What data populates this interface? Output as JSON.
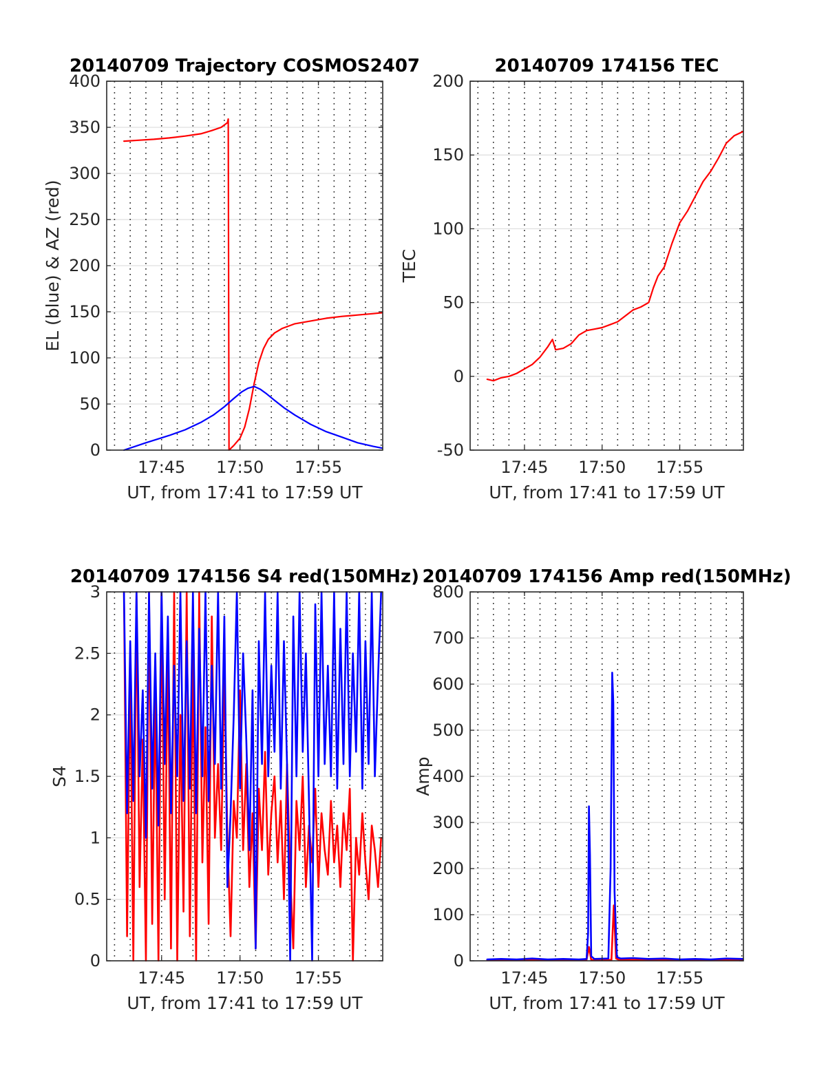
{
  "chart_data": [
    {
      "type": "line",
      "title": "20140709 Trajectory COSMOS2407",
      "xlabel": "UT, from 17:41 to 17:59 UT",
      "ylabel": "EL (blue) & AZ (red)",
      "xlim": [
        41.5,
        59.1
      ],
      "ylim": [
        0,
        400
      ],
      "xticks": [
        45,
        50,
        55
      ],
      "xtick_labels": [
        "17:45",
        "17:50",
        "17:55"
      ],
      "yticks": [
        0,
        50,
        100,
        150,
        200,
        250,
        300,
        350,
        400
      ],
      "grid": true,
      "series": [
        {
          "color": "#ff0000",
          "x": [
            42.6,
            43.5,
            44.5,
            45.5,
            46.5,
            47.5,
            48.2,
            48.8,
            49.2,
            49.25,
            49.3,
            49.6,
            50.0,
            50.3,
            50.6,
            50.9,
            51.2,
            51.5,
            51.8,
            52.2,
            52.7,
            53.5,
            54.5,
            55.5,
            56.5,
            57.5,
            58.5,
            59.1
          ],
          "y": [
            335,
            336,
            337,
            338.5,
            340.5,
            343,
            346.5,
            350,
            355,
            359,
            0,
            5,
            13,
            25,
            45,
            72,
            95,
            110,
            120,
            127,
            132,
            137,
            140,
            143,
            145,
            146.5,
            148,
            149
          ]
        },
        {
          "color": "#0000ff",
          "x": [
            42.6,
            44.0,
            45.5,
            46.5,
            47.5,
            48.3,
            49.0,
            49.6,
            50.1,
            50.5,
            50.9,
            51.3,
            51.7,
            52.2,
            52.8,
            53.5,
            54.5,
            55.5,
            56.5,
            57.5,
            58.5,
            59.1
          ],
          "y": [
            0,
            8,
            16,
            22,
            30,
            38,
            47,
            56,
            63,
            67,
            69,
            66,
            61,
            54,
            46,
            38,
            28,
            20,
            14,
            8,
            4,
            2
          ]
        }
      ]
    },
    {
      "type": "line",
      "title": "20140709 174156 TEC",
      "xlabel": "UT, from 17:41 to 17:59 UT",
      "ylabel": "TEC",
      "xlim": [
        41.5,
        59.1
      ],
      "ylim": [
        -50,
        200
      ],
      "xticks": [
        45,
        50,
        55
      ],
      "xtick_labels": [
        "17:45",
        "17:50",
        "17:55"
      ],
      "yticks": [
        -50,
        0,
        50,
        100,
        150,
        200
      ],
      "grid": true,
      "series": [
        {
          "color": "#ff0000",
          "x": [
            42.6,
            43.0,
            43.5,
            44.0,
            44.5,
            45.0,
            45.5,
            46.0,
            46.5,
            46.8,
            47.0,
            47.5,
            48.0,
            48.5,
            49.0,
            49.5,
            50.0,
            50.5,
            51.0,
            51.5,
            52.0,
            52.5,
            53.0,
            53.3,
            53.6,
            54.0,
            54.5,
            55.0,
            55.5,
            56.0,
            56.5,
            57.0,
            57.5,
            58.0,
            58.5,
            59.1
          ],
          "y": [
            -2,
            -3,
            -1,
            0,
            2,
            5,
            8,
            13,
            20,
            25,
            18,
            19,
            22,
            28,
            31,
            32,
            33,
            35,
            37,
            41,
            45,
            47,
            50,
            60,
            68,
            74,
            90,
            104,
            112,
            122,
            132,
            139,
            148,
            158,
            163,
            166
          ]
        }
      ]
    },
    {
      "type": "line",
      "title": "20140709 174156 S4 red(150MHz)",
      "xlabel": "UT, from 17:41 to 17:59 UT",
      "ylabel": "S4",
      "xlim": [
        41.5,
        59.1
      ],
      "ylim": [
        0,
        3
      ],
      "xticks": [
        45,
        50,
        55
      ],
      "xtick_labels": [
        "17:45",
        "17:50",
        "17:55"
      ],
      "yticks": [
        0,
        0.5,
        1,
        1.5,
        2,
        2.5,
        3
      ],
      "grid": true,
      "series": [
        {
          "color": "#ff0000",
          "x": [
            42.6,
            42.8,
            43.0,
            43.2,
            43.4,
            43.6,
            43.8,
            44.0,
            44.2,
            44.4,
            44.6,
            44.8,
            45.0,
            45.2,
            45.4,
            45.6,
            45.8,
            46.0,
            46.2,
            46.4,
            46.6,
            46.8,
            47.0,
            47.2,
            47.4,
            47.6,
            47.8,
            48.0,
            48.2,
            48.4,
            48.6,
            48.8,
            49.0,
            49.2,
            49.4,
            49.6,
            49.8,
            50.0,
            50.2,
            50.4,
            50.6,
            50.8,
            51.0,
            51.2,
            51.4,
            51.6,
            51.8,
            52.0,
            52.2,
            52.4,
            52.6,
            52.8,
            53.0,
            53.2,
            53.4,
            53.6,
            53.8,
            54.0,
            54.2,
            54.4,
            54.6,
            54.8,
            55.0,
            55.2,
            55.4,
            55.6,
            55.8,
            56.0,
            56.2,
            56.4,
            56.6,
            56.8,
            57.0,
            57.2,
            57.4,
            57.6,
            57.8,
            58.0,
            58.2,
            58.4,
            58.6,
            58.8,
            59.0
          ],
          "y": [
            3.0,
            0.2,
            2.4,
            0.0,
            3.0,
            0.6,
            1.8,
            0.0,
            3.0,
            0.3,
            2.2,
            0.0,
            3.0,
            0.5,
            2.6,
            0.1,
            3.0,
            0.0,
            2.0,
            0.4,
            3.0,
            0.2,
            2.5,
            0.0,
            3.0,
            0.8,
            1.9,
            0.3,
            2.8,
            1.0,
            1.6,
            0.9,
            2.4,
            1.0,
            0.2,
            1.3,
            1.0,
            2.2,
            0.9,
            1.6,
            0.6,
            1.2,
            0.1,
            1.4,
            0.9,
            1.7,
            0.7,
            1.2,
            1.5,
            0.8,
            1.3,
            0.5,
            1.6,
            0.7,
            0.1,
            1.3,
            0.9,
            1.5,
            0.6,
            1.1,
            0.8,
            1.4,
            0.6,
            1.2,
            0.9,
            0.7,
            1.3,
            0.8,
            1.1,
            0.6,
            1.2,
            0.9,
            1.4,
            0.0,
            1.0,
            0.7,
            1.2,
            0.8,
            0.5,
            1.1,
            0.9,
            0.6,
            1.0
          ]
        },
        {
          "color": "#0000ff",
          "x": [
            42.6,
            42.8,
            43.0,
            43.2,
            43.4,
            43.6,
            43.8,
            44.0,
            44.2,
            44.4,
            44.6,
            44.8,
            45.0,
            45.2,
            45.4,
            45.6,
            45.8,
            46.0,
            46.2,
            46.4,
            46.6,
            46.8,
            47.0,
            47.2,
            47.4,
            47.6,
            47.8,
            48.0,
            48.2,
            48.4,
            48.6,
            48.8,
            49.0,
            49.2,
            49.4,
            49.6,
            49.8,
            50.0,
            50.2,
            50.4,
            50.6,
            50.8,
            51.0,
            51.2,
            51.4,
            51.6,
            51.8,
            52.0,
            52.2,
            52.4,
            52.6,
            52.8,
            53.0,
            53.2,
            53.4,
            53.6,
            53.8,
            54.0,
            54.2,
            54.4,
            54.6,
            54.8,
            55.0,
            55.2,
            55.4,
            55.6,
            55.8,
            56.0,
            56.2,
            56.4,
            56.6,
            56.8,
            57.0,
            57.2,
            57.4,
            57.6,
            57.8,
            58.0,
            58.2,
            58.4,
            58.6,
            58.8,
            59.0
          ],
          "y": [
            3.0,
            1.2,
            2.6,
            1.3,
            3.0,
            1.5,
            2.2,
            1.0,
            3.0,
            1.4,
            2.5,
            1.1,
            3.0,
            1.6,
            2.8,
            1.2,
            2.4,
            1.5,
            3.0,
            1.3,
            2.6,
            1.4,
            3.0,
            1.2,
            2.7,
            1.5,
            3.0,
            1.3,
            2.4,
            1.6,
            3.0,
            1.4,
            2.8,
            0.6,
            1.2,
            2.0,
            3.0,
            1.4,
            2.5,
            1.8,
            0.9,
            2.2,
            0.1,
            2.6,
            1.6,
            3.0,
            1.5,
            2.4,
            1.7,
            3.0,
            1.4,
            2.6,
            1.6,
            0.0,
            2.8,
            1.5,
            3.0,
            1.7,
            2.5,
            1.3,
            0.0,
            2.9,
            1.5,
            3.0,
            1.6,
            2.4,
            1.5,
            3.0,
            1.4,
            2.7,
            1.6,
            3.0,
            1.5,
            2.5,
            1.7,
            3.0,
            1.4,
            2.6,
            1.6,
            3.0,
            1.5,
            2.3,
            3.0
          ]
        }
      ]
    },
    {
      "type": "line",
      "title": "20140709 174156 Amp red(150MHz)",
      "xlabel": "UT, from 17:41 to 17:59 UT",
      "ylabel": "Amp",
      "xlim": [
        41.5,
        59.1
      ],
      "ylim": [
        0,
        800
      ],
      "xticks": [
        45,
        50,
        55
      ],
      "xtick_labels": [
        "17:45",
        "17:50",
        "17:55"
      ],
      "yticks": [
        0,
        100,
        200,
        300,
        400,
        500,
        600,
        700,
        800
      ],
      "grid": true,
      "series": [
        {
          "color": "#ff0000",
          "x": [
            42.6,
            49.0,
            49.15,
            49.3,
            49.5,
            50.6,
            50.75,
            50.9,
            51.1,
            59.1
          ],
          "y": [
            2,
            2,
            30,
            2,
            2,
            2,
            120,
            5,
            2,
            2
          ]
        },
        {
          "color": "#0000ff",
          "x": [
            42.6,
            43.5,
            44.5,
            45.5,
            46.5,
            47.5,
            48.5,
            49.0,
            49.1,
            49.15,
            49.22,
            49.3,
            49.5,
            50.4,
            50.55,
            50.65,
            50.72,
            50.8,
            50.95,
            51.2,
            52.0,
            53.0,
            54.0,
            55.0,
            56.0,
            57.0,
            58.0,
            59.1
          ],
          "y": [
            3,
            4,
            3,
            5,
            3,
            4,
            3,
            4,
            60,
            335,
            230,
            10,
            4,
            5,
            200,
            625,
            560,
            150,
            8,
            5,
            6,
            4,
            5,
            3,
            4,
            3,
            5,
            4
          ]
        }
      ]
    }
  ]
}
